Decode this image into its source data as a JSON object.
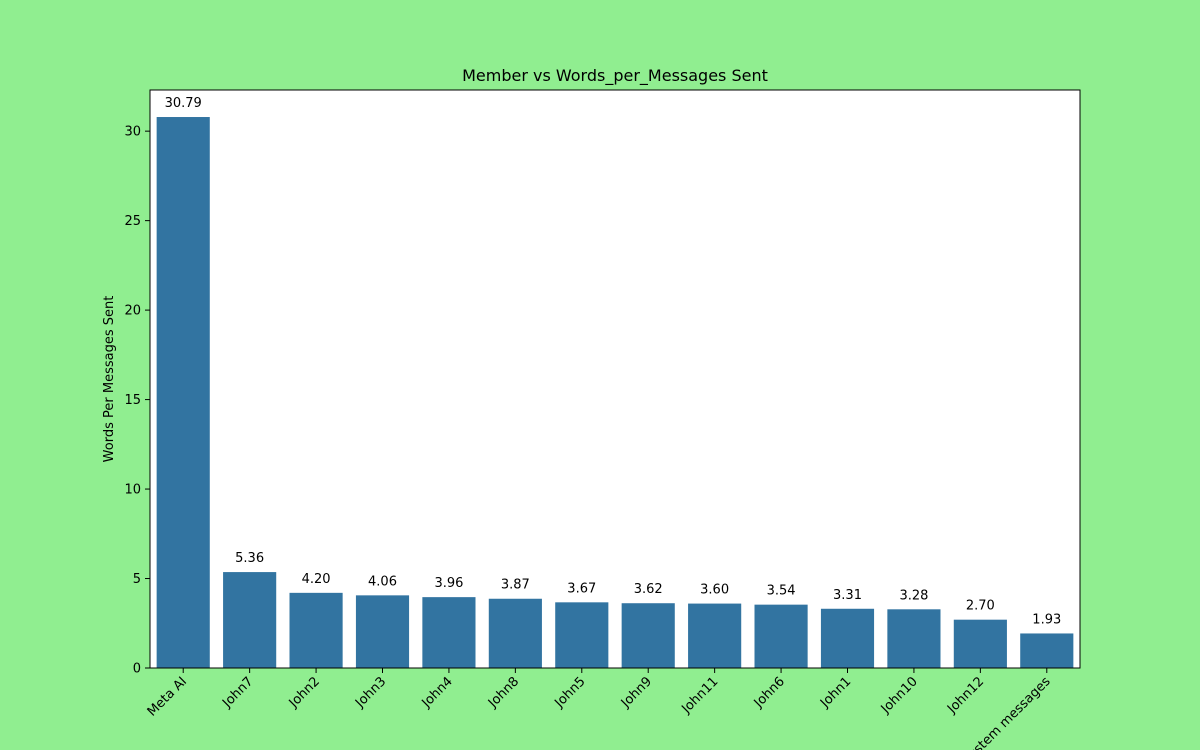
{
  "colors": {
    "background": "#90EE90",
    "plot_area": "#FFFFFF",
    "bar": "#3274A1",
    "axis": "#000000"
  },
  "chart_data": {
    "type": "bar",
    "title": "Member vs Words_per_Messages Sent",
    "xlabel": "",
    "ylabel": "Words Per Messages Sent",
    "categories": [
      "Meta AI",
      "John7",
      "John2",
      "John3",
      "John4",
      "John8",
      "John5",
      "John9",
      "John11",
      "John6",
      "John1",
      "John10",
      "John12",
      "System messages"
    ],
    "values": [
      30.79,
      5.36,
      4.2,
      4.06,
      3.96,
      3.87,
      3.67,
      3.62,
      3.6,
      3.54,
      3.31,
      3.28,
      2.7,
      1.93
    ],
    "data_labels": [
      "30.79",
      "5.36",
      "4.20",
      "4.06",
      "3.96",
      "3.87",
      "3.67",
      "3.62",
      "3.60",
      "3.54",
      "3.31",
      "3.28",
      "2.70",
      "1.93"
    ],
    "ylim": [
      0,
      32.3
    ],
    "yticks": [
      0,
      5,
      10,
      15,
      20,
      25,
      30
    ],
    "grid": false,
    "legend": "none"
  }
}
